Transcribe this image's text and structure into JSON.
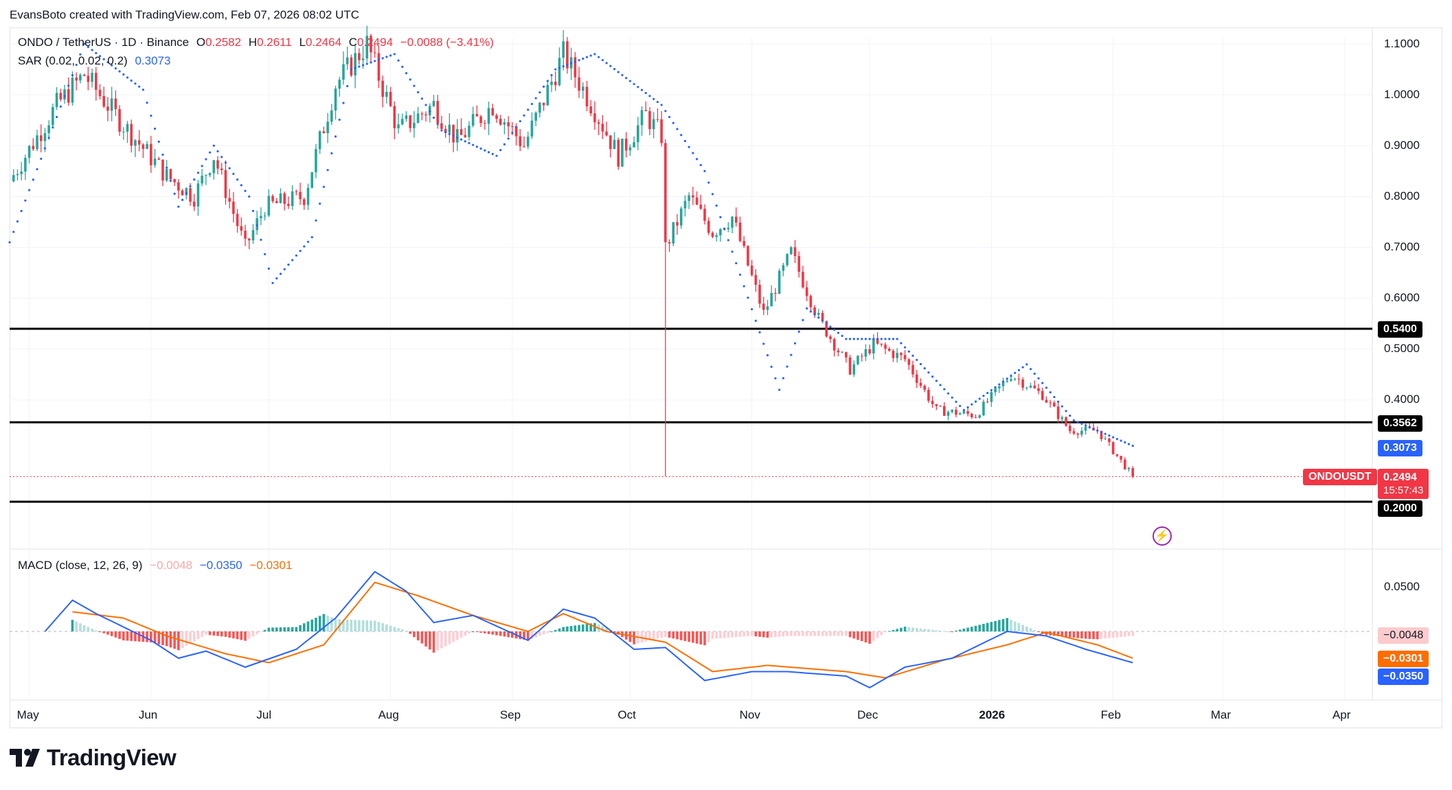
{
  "header": {
    "credit": "EvansBoto created with TradingView.com, Feb 07, 2026 08:02 UTC"
  },
  "legend": {
    "symbol": "ONDO / TetherUS · 1D · Binance",
    "o_label": "O",
    "o_value": "0.2582",
    "h_label": "H",
    "h_value": "0.2611",
    "l_label": "L",
    "l_value": "0.2464",
    "c_label": "C",
    "c_value": "0.2494",
    "change": "−0.0088 (−3.41%)",
    "sar_label": "SAR (0.02, 0.02, 0.2)",
    "sar_value": "0.3073"
  },
  "macd_legend": {
    "label": "MACD (close, 12, 26, 9)",
    "hist_value": "−0.0048",
    "macd_value": "−0.0350",
    "signal_value": "−0.0301"
  },
  "price_axis": [
    "1.1000",
    "1.0000",
    "0.9000",
    "0.8000",
    "0.7000",
    "0.6000",
    "0.5000",
    "0.4000"
  ],
  "macd_axis": [
    "0.0500"
  ],
  "badges": {
    "level_054": "0.5400",
    "level_0356": "0.3562",
    "sar": "0.3073",
    "symbol_tag": "ONDOUSDT",
    "last_price": "0.2494",
    "countdown": "15:57:43",
    "level_020": "0.2000",
    "macd_hist": "−0.0048",
    "macd_signal": "−0.0301",
    "macd_line": "−0.0350"
  },
  "time_axis": [
    "May",
    "Jun",
    "Jul",
    "Aug",
    "Sep",
    "Oct",
    "Nov",
    "Dec",
    "2026",
    "Feb",
    "Mar",
    "Apr"
  ],
  "footer": {
    "brand": "TradingView"
  },
  "colors": {
    "up": "#26a69a",
    "down": "#f23645",
    "sar": "#2962ff",
    "macd": "#2962ff",
    "signal": "#ff6d00",
    "black": "#000000"
  },
  "chart_data": [
    {
      "type": "candlestick",
      "title": "ONDO / TetherUS · 1D · Binance",
      "x_range": [
        "2025-04-26",
        "2026-04-08"
      ],
      "ylim": [
        0.18,
        1.15
      ],
      "horizontal_levels": [
        0.54,
        0.3562,
        0.2
      ],
      "last_close": 0.2494,
      "sar_last": 0.3073,
      "close_path": [
        [
          "2025-04-26",
          0.83
        ],
        [
          "2025-05-08",
          0.98
        ],
        [
          "2025-05-15",
          1.04
        ],
        [
          "2025-05-24",
          0.95
        ],
        [
          "2025-06-05",
          0.84
        ],
        [
          "2025-06-12",
          0.8
        ],
        [
          "2025-06-17",
          0.88
        ],
        [
          "2025-06-25",
          0.7
        ],
        [
          "2025-06-30",
          0.78
        ],
        [
          "2025-07-10",
          0.8
        ],
        [
          "2025-07-18",
          1.02
        ],
        [
          "2025-07-26",
          1.1
        ],
        [
          "2025-08-03",
          0.93
        ],
        [
          "2025-08-12",
          0.98
        ],
        [
          "2025-08-18",
          0.91
        ],
        [
          "2025-08-27",
          0.98
        ],
        [
          "2025-09-04",
          0.9
        ],
        [
          "2025-09-14",
          1.08
        ],
        [
          "2025-09-22",
          0.97
        ],
        [
          "2025-09-28",
          0.88
        ],
        [
          "2025-10-05",
          0.96
        ],
        [
          "2025-10-09",
          0.92
        ],
        [
          "2025-10-10",
          0.7
        ],
        [
          "2025-10-16",
          0.8
        ],
        [
          "2025-10-22",
          0.73
        ],
        [
          "2025-10-27",
          0.76
        ],
        [
          "2025-11-04",
          0.57
        ],
        [
          "2025-11-11",
          0.69
        ],
        [
          "2025-11-18",
          0.56
        ],
        [
          "2025-11-26",
          0.46
        ],
        [
          "2025-12-02",
          0.51
        ],
        [
          "2025-12-10",
          0.48
        ],
        [
          "2025-12-18",
          0.38
        ],
        [
          "2025-12-28",
          0.37
        ],
        [
          "2026-01-06",
          0.45
        ],
        [
          "2026-01-14",
          0.41
        ],
        [
          "2026-01-21",
          0.34
        ],
        [
          "2026-01-28",
          0.34
        ],
        [
          "2026-02-03",
          0.28
        ],
        [
          "2026-02-06",
          0.25
        ]
      ],
      "sar_path": [
        [
          "2025-04-26",
          0.71
        ],
        [
          "2025-05-15",
          1.1
        ],
        [
          "2025-05-30",
          1.01
        ],
        [
          "2025-06-08",
          0.78
        ],
        [
          "2025-06-17",
          0.9
        ],
        [
          "2025-06-26",
          0.8
        ],
        [
          "2025-07-02",
          0.63
        ],
        [
          "2025-07-12",
          0.72
        ],
        [
          "2025-07-22",
          1.05
        ],
        [
          "2025-08-02",
          1.08
        ],
        [
          "2025-08-14",
          0.93
        ],
        [
          "2025-08-28",
          0.88
        ],
        [
          "2025-09-12",
          1.05
        ],
        [
          "2025-09-22",
          1.08
        ],
        [
          "2025-10-09",
          0.98
        ],
        [
          "2025-10-20",
          0.85
        ],
        [
          "2025-11-08",
          0.42
        ],
        [
          "2025-11-15",
          0.58
        ],
        [
          "2025-11-25",
          0.52
        ],
        [
          "2025-12-08",
          0.52
        ],
        [
          "2025-12-25",
          0.38
        ],
        [
          "2026-01-10",
          0.47
        ],
        [
          "2026-01-22",
          0.36
        ],
        [
          "2026-02-06",
          0.31
        ]
      ]
    },
    {
      "type": "line",
      "title": "MACD (close, 12, 26, 9)",
      "ylim": [
        -0.09,
        0.08
      ],
      "series": [
        {
          "name": "MACD",
          "points": [
            [
              "2025-05-05",
              0.0
            ],
            [
              "2025-05-12",
              0.035
            ],
            [
              "2025-05-18",
              0.02
            ],
            [
              "2025-06-01",
              -0.01
            ],
            [
              "2025-06-08",
              -0.03
            ],
            [
              "2025-06-15",
              -0.022
            ],
            [
              "2025-06-25",
              -0.04
            ],
            [
              "2025-07-08",
              -0.02
            ],
            [
              "2025-07-18",
              0.015
            ],
            [
              "2025-07-28",
              0.067
            ],
            [
              "2025-08-05",
              0.045
            ],
            [
              "2025-08-12",
              0.01
            ],
            [
              "2025-08-22",
              0.018
            ],
            [
              "2025-09-05",
              -0.01
            ],
            [
              "2025-09-14",
              0.025
            ],
            [
              "2025-09-22",
              0.015
            ],
            [
              "2025-10-02",
              -0.02
            ],
            [
              "2025-10-10",
              -0.018
            ],
            [
              "2025-10-20",
              -0.055
            ],
            [
              "2025-11-01",
              -0.045
            ],
            [
              "2025-11-10",
              -0.045
            ],
            [
              "2025-11-25",
              -0.05
            ],
            [
              "2025-12-01",
              -0.063
            ],
            [
              "2025-12-10",
              -0.04
            ],
            [
              "2025-12-22",
              -0.03
            ],
            [
              "2026-01-05",
              0.0
            ],
            [
              "2026-01-15",
              -0.005
            ],
            [
              "2026-01-25",
              -0.02
            ],
            [
              "2026-02-06",
              -0.035
            ]
          ]
        },
        {
          "name": "Signal",
          "points": [
            [
              "2025-05-12",
              0.022
            ],
            [
              "2025-05-25",
              0.015
            ],
            [
              "2025-06-05",
              -0.005
            ],
            [
              "2025-06-20",
              -0.025
            ],
            [
              "2025-07-01",
              -0.035
            ],
            [
              "2025-07-15",
              -0.015
            ],
            [
              "2025-07-28",
              0.055
            ],
            [
              "2025-08-08",
              0.04
            ],
            [
              "2025-08-22",
              0.018
            ],
            [
              "2025-09-05",
              0.0
            ],
            [
              "2025-09-14",
              0.02
            ],
            [
              "2025-09-25",
              0.0
            ],
            [
              "2025-10-10",
              -0.012
            ],
            [
              "2025-10-22",
              -0.045
            ],
            [
              "2025-11-05",
              -0.038
            ],
            [
              "2025-11-25",
              -0.045
            ],
            [
              "2025-12-05",
              -0.052
            ],
            [
              "2025-12-20",
              -0.032
            ],
            [
              "2026-01-05",
              -0.015
            ],
            [
              "2026-01-15",
              -0.001
            ],
            [
              "2026-01-28",
              -0.015
            ],
            [
              "2026-02-06",
              -0.03
            ]
          ]
        }
      ]
    }
  ]
}
